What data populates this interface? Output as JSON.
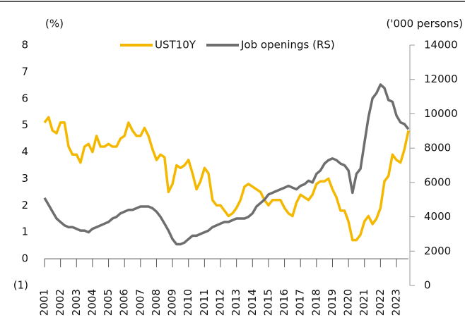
{
  "chart_data": {
    "type": "line",
    "y_label": "(%)",
    "y2_label": "('000 persons)",
    "x": [
      2001,
      2001.25,
      2001.5,
      2001.75,
      2002,
      2002.25,
      2002.5,
      2002.75,
      2003,
      2003.25,
      2003.5,
      2003.75,
      2004,
      2004.25,
      2004.5,
      2004.75,
      2005,
      2005.25,
      2005.5,
      2005.75,
      2006,
      2006.25,
      2006.5,
      2006.75,
      2007,
      2007.25,
      2007.5,
      2007.75,
      2008,
      2008.25,
      2008.5,
      2008.75,
      2009,
      2009.25,
      2009.5,
      2009.75,
      2010,
      2010.25,
      2010.5,
      2010.75,
      2011,
      2011.25,
      2011.5,
      2011.75,
      2012,
      2012.25,
      2012.5,
      2012.75,
      2013,
      2013.25,
      2013.5,
      2013.75,
      2014,
      2014.25,
      2014.5,
      2014.75,
      2015,
      2015.25,
      2015.5,
      2015.75,
      2016,
      2016.25,
      2016.5,
      2016.75,
      2017,
      2017.25,
      2017.5,
      2017.75,
      2018,
      2018.25,
      2018.5,
      2018.75,
      2019,
      2019.25,
      2019.5,
      2019.75,
      2020,
      2020.25,
      2020.5,
      2020.75,
      2021,
      2021.25,
      2021.5,
      2021.75,
      2022,
      2022.25,
      2022.5,
      2022.75,
      2023,
      2023.25,
      2023.5,
      2023.75
    ],
    "series": [
      {
        "name": "UST10Y",
        "color": "#f5b800",
        "values": [
          5.1,
          5.3,
          4.8,
          4.7,
          5.1,
          5.1,
          4.2,
          3.9,
          3.9,
          3.6,
          4.2,
          4.3,
          4.0,
          4.6,
          4.2,
          4.2,
          4.3,
          4.2,
          4.2,
          4.5,
          4.6,
          5.1,
          4.8,
          4.6,
          4.6,
          4.9,
          4.6,
          4.1,
          3.7,
          3.9,
          3.8,
          2.5,
          2.8,
          3.5,
          3.4,
          3.5,
          3.7,
          3.2,
          2.6,
          2.9,
          3.4,
          3.2,
          2.2,
          2.0,
          2.0,
          1.8,
          1.6,
          1.7,
          1.9,
          2.2,
          2.7,
          2.8,
          2.7,
          2.6,
          2.5,
          2.2,
          2.0,
          2.2,
          2.2,
          2.2,
          1.9,
          1.7,
          1.6,
          2.1,
          2.4,
          2.3,
          2.2,
          2.4,
          2.8,
          2.9,
          2.9,
          3.0,
          2.6,
          2.3,
          1.8,
          1.8,
          1.4,
          0.7,
          0.7,
          0.9,
          1.4,
          1.6,
          1.3,
          1.5,
          1.9,
          2.9,
          3.1,
          3.9,
          3.7,
          3.6,
          4.1,
          4.8
        ]
      },
      {
        "name": "Job openings (RS)",
        "color": "#6e6e6e",
        "axis": "y2",
        "values": [
          5100,
          4700,
          4300,
          3900,
          3700,
          3500,
          3400,
          3400,
          3300,
          3200,
          3200,
          3100,
          3300,
          3400,
          3500,
          3600,
          3700,
          3900,
          4000,
          4200,
          4300,
          4400,
          4400,
          4500,
          4600,
          4600,
          4600,
          4500,
          4300,
          4000,
          3600,
          3200,
          2700,
          2400,
          2400,
          2500,
          2700,
          2900,
          2900,
          3000,
          3100,
          3200,
          3400,
          3500,
          3600,
          3700,
          3700,
          3800,
          3900,
          3900,
          3900,
          4000,
          4200,
          4600,
          4800,
          5000,
          5300,
          5400,
          5500,
          5600,
          5700,
          5800,
          5700,
          5600,
          5800,
          5900,
          6100,
          6000,
          6500,
          6700,
          7100,
          7300,
          7400,
          7300,
          7100,
          7000,
          6700,
          5400,
          6500,
          6800,
          8300,
          9800,
          10900,
          11200,
          11700,
          11500,
          10800,
          10700,
          9900,
          9500,
          9400,
          9100
        ]
      }
    ],
    "xlim": [
      2001,
      2023.75
    ],
    "xticks": [
      2001,
      2002,
      2003,
      2004,
      2005,
      2006,
      2007,
      2008,
      2009,
      2010,
      2011,
      2012,
      2013,
      2014,
      2015,
      2016,
      2017,
      2018,
      2019,
      2020,
      2021,
      2022,
      2023
    ],
    "ylim": [
      -1,
      8
    ],
    "yticks": [
      {
        "value": -1,
        "label": "(1)"
      },
      0,
      1,
      2,
      3,
      4,
      5,
      6,
      7,
      8
    ],
    "y2lim": [
      0,
      14000
    ],
    "y2ticks": [
      0,
      2000,
      4000,
      6000,
      8000,
      10000,
      12000,
      14000
    ]
  }
}
